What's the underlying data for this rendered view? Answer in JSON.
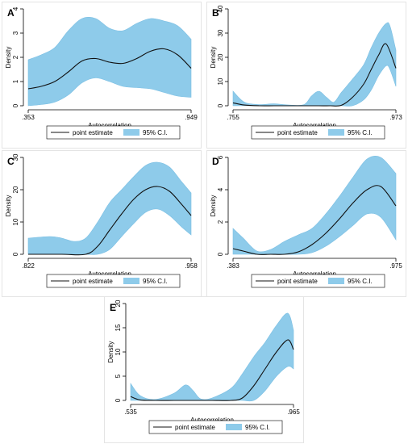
{
  "colors": {
    "band": "#8ecbea",
    "band_edge": "#7bbfe3",
    "line": "#111111",
    "axis": "#000000"
  },
  "legend": {
    "line_label": "point estimate",
    "band_label": "95% C.I."
  },
  "chart_data": [
    {
      "type": "line",
      "panel": "A",
      "xlabel": "Autocorrelation",
      "ylabel": "Density",
      "xlim": [
        0.353,
        0.949
      ],
      "xticks": [
        ".353",
        ".949"
      ],
      "ylim": [
        0,
        4
      ],
      "yticks": [
        0,
        1,
        2,
        3,
        4
      ],
      "grid": false,
      "legend_position": "bottom",
      "series": [
        {
          "name": "point estimate",
          "x": [
            0.353,
            0.4,
            0.45,
            0.5,
            0.55,
            0.6,
            0.65,
            0.7,
            0.75,
            0.8,
            0.85,
            0.9,
            0.949
          ],
          "y": [
            0.7,
            0.8,
            1.0,
            1.4,
            1.85,
            1.95,
            1.8,
            1.75,
            1.95,
            2.25,
            2.35,
            2.1,
            1.55
          ]
        },
        {
          "name": "95% C.I.",
          "x": [
            0.353,
            0.4,
            0.45,
            0.5,
            0.55,
            0.6,
            0.65,
            0.7,
            0.75,
            0.8,
            0.85,
            0.9,
            0.949
          ],
          "lower": [
            0.0,
            0.05,
            0.15,
            0.45,
            0.95,
            1.15,
            1.0,
            0.8,
            0.75,
            0.7,
            0.55,
            0.4,
            0.35
          ],
          "upper": [
            1.9,
            2.1,
            2.4,
            3.1,
            3.6,
            3.6,
            3.2,
            3.1,
            3.4,
            3.6,
            3.5,
            3.3,
            2.75
          ]
        }
      ]
    },
    {
      "type": "line",
      "panel": "B",
      "xlabel": "Autocorrelation",
      "ylabel": "Density",
      "xlim": [
        0.755,
        0.973
      ],
      "xticks": [
        ".755",
        ".973"
      ],
      "ylim": [
        0,
        40
      ],
      "yticks": [
        0,
        10,
        20,
        30,
        40
      ],
      "grid": false,
      "legend_position": "bottom",
      "series": [
        {
          "name": "point estimate",
          "x": [
            0.755,
            0.77,
            0.79,
            0.81,
            0.83,
            0.85,
            0.87,
            0.885,
            0.9,
            0.915,
            0.93,
            0.94,
            0.95,
            0.96,
            0.973
          ],
          "y": [
            1.2,
            0.3,
            0.0,
            0.0,
            0.0,
            0.0,
            0.0,
            0.0,
            0.2,
            3.5,
            9.0,
            15.0,
            21.0,
            25.5,
            15.5
          ]
        },
        {
          "name": "95% C.I.",
          "x": [
            0.755,
            0.77,
            0.79,
            0.81,
            0.83,
            0.85,
            0.86,
            0.87,
            0.88,
            0.89,
            0.9,
            0.915,
            0.93,
            0.94,
            0.95,
            0.96,
            0.965,
            0.973
          ],
          "lower": [
            0,
            0,
            0,
            0,
            0,
            0,
            0,
            0,
            0,
            0,
            0,
            0,
            2.5,
            6.5,
            12.5,
            16.5,
            15.0,
            8.0
          ],
          "upper": [
            6.0,
            1.5,
            0.5,
            0.8,
            0.3,
            0.5,
            4.0,
            6.0,
            3.5,
            1.5,
            5.5,
            11.0,
            17.0,
            24.0,
            30.0,
            34.0,
            33.0,
            23.0
          ]
        }
      ]
    },
    {
      "type": "line",
      "panel": "C",
      "xlabel": "Autocorrelation",
      "ylabel": "Density",
      "xlim": [
        0.822,
        0.958
      ],
      "xticks": [
        ".822",
        ".958"
      ],
      "ylim": [
        0,
        30
      ],
      "yticks": [
        0,
        10,
        20,
        30
      ],
      "grid": false,
      "legend_position": "bottom",
      "series": [
        {
          "name": "point estimate",
          "x": [
            0.822,
            0.85,
            0.87,
            0.88,
            0.89,
            0.9,
            0.91,
            0.92,
            0.93,
            0.94,
            0.95,
            0.958
          ],
          "y": [
            0.0,
            0.0,
            0.0,
            2.5,
            7.5,
            12.5,
            17.0,
            20.0,
            21.0,
            19.5,
            15.5,
            12.0
          ]
        },
        {
          "name": "95% C.I.",
          "x": [
            0.822,
            0.84,
            0.85,
            0.86,
            0.87,
            0.88,
            0.89,
            0.9,
            0.91,
            0.92,
            0.93,
            0.94,
            0.95,
            0.958
          ],
          "lower": [
            0,
            0,
            0,
            0,
            0,
            0,
            1.5,
            5.5,
            9.5,
            13.0,
            14.0,
            12.0,
            8.5,
            6.0
          ],
          "upper": [
            5.0,
            5.5,
            5.0,
            4.0,
            5.0,
            10.0,
            16.0,
            20.0,
            24.0,
            27.5,
            28.5,
            27.0,
            22.5,
            19.0
          ]
        }
      ]
    },
    {
      "type": "line",
      "panel": "D",
      "xlabel": "Autocorrelation",
      "ylabel": "Density",
      "xlim": [
        0.383,
        0.975
      ],
      "xticks": [
        ".383",
        ".975"
      ],
      "ylim": [
        0,
        6
      ],
      "yticks": [
        0,
        2,
        4,
        6
      ],
      "grid": false,
      "legend_position": "bottom",
      "series": [
        {
          "name": "point estimate",
          "x": [
            0.383,
            0.42,
            0.47,
            0.52,
            0.57,
            0.62,
            0.67,
            0.72,
            0.77,
            0.82,
            0.87,
            0.92,
            0.975
          ],
          "y": [
            0.35,
            0.2,
            0.0,
            0.0,
            0.0,
            0.15,
            0.6,
            1.3,
            2.2,
            3.2,
            4.0,
            4.2,
            3.0
          ]
        },
        {
          "name": "95% C.I.",
          "x": [
            0.383,
            0.42,
            0.47,
            0.52,
            0.57,
            0.62,
            0.67,
            0.72,
            0.77,
            0.82,
            0.87,
            0.92,
            0.975
          ],
          "lower": [
            0,
            0,
            0,
            0,
            0,
            0,
            0.1,
            0.5,
            1.1,
            1.8,
            2.5,
            2.3,
            0.9
          ],
          "upper": [
            1.6,
            1.0,
            0.2,
            0.3,
            0.8,
            1.2,
            1.6,
            2.5,
            3.6,
            4.8,
            5.9,
            6.3,
            5.0
          ]
        }
      ]
    },
    {
      "type": "line",
      "panel": "E",
      "xlabel": "Autocorrelation",
      "ylabel": "Density",
      "xlim": [
        0.535,
        0.965
      ],
      "xticks": [
        ".535",
        ".965"
      ],
      "ylim": [
        0,
        20
      ],
      "yticks": [
        0,
        5,
        10,
        15,
        20
      ],
      "grid": false,
      "legend_position": "bottom",
      "series": [
        {
          "name": "point estimate",
          "x": [
            0.535,
            0.56,
            0.6,
            0.65,
            0.7,
            0.75,
            0.8,
            0.83,
            0.86,
            0.89,
            0.92,
            0.95,
            0.965
          ],
          "y": [
            0.8,
            0.1,
            0.0,
            0.0,
            0.0,
            0.0,
            0.0,
            0.5,
            3.0,
            6.5,
            10.0,
            12.5,
            10.5
          ]
        },
        {
          "name": "95% C.I.",
          "x": [
            0.535,
            0.56,
            0.6,
            0.65,
            0.68,
            0.7,
            0.72,
            0.75,
            0.8,
            0.83,
            0.86,
            0.89,
            0.92,
            0.95,
            0.965
          ],
          "lower": [
            0,
            0,
            0,
            0,
            0,
            0,
            0,
            0,
            0,
            0,
            0,
            2.0,
            5.0,
            7.0,
            6.5
          ],
          "upper": [
            3.5,
            1.0,
            0.2,
            1.5,
            3.2,
            2.0,
            0.3,
            0.5,
            2.5,
            5.5,
            9.0,
            12.0,
            15.5,
            18.0,
            14.5
          ]
        }
      ]
    }
  ]
}
